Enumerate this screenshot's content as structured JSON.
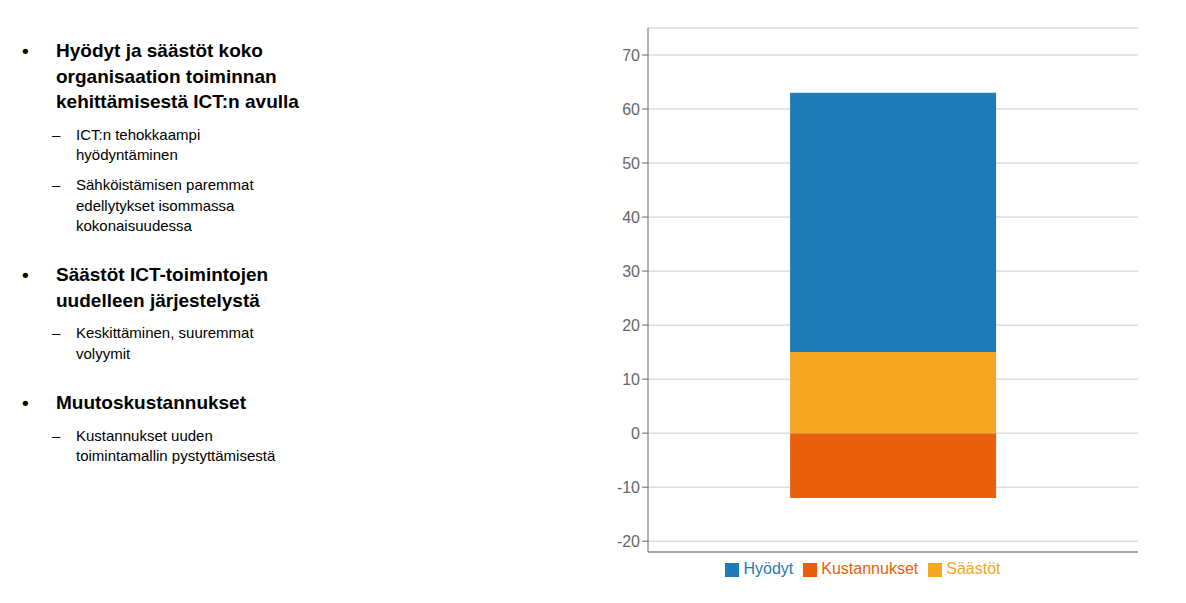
{
  "chart_data": {
    "type": "bar",
    "stacked": true,
    "categories": [
      null
    ],
    "series": [
      {
        "name": "Kustannukset",
        "color": "#E8610A",
        "values": [
          -12
        ]
      },
      {
        "name": "Säästöt",
        "color": "#F5A623",
        "values": [
          15
        ]
      },
      {
        "name": "Hyödyt",
        "color": "#1F7BB6",
        "values": [
          48
        ]
      }
    ],
    "ylim": [
      -22,
      75
    ],
    "yticks": [
      -20,
      -10,
      0,
      10,
      20,
      30,
      40,
      50,
      60,
      70
    ],
    "grid": true,
    "tick_labels": "y",
    "legend": "bottom",
    "annotations": [
      "• Hyödyt ja säästöt koko\norganisaation toiminnan\nkehittämisestä ICT:n avulla",
      "– ICT:n tehokkaampi\nhyödyntäminen",
      "– Sähköistämisen paremmat\nedellytykset isommassa\nkokonaisuudessa",
      "• Säästöt ICT-toimintojen\nuudelleen järjestelystä",
      "– Keskittäminen, suuremmat\nvolyymit",
      "• Muutoskustannukset",
      "– Kustannukset uuden\ntoimintamallin pystyttämisestä"
    ]
  }
}
